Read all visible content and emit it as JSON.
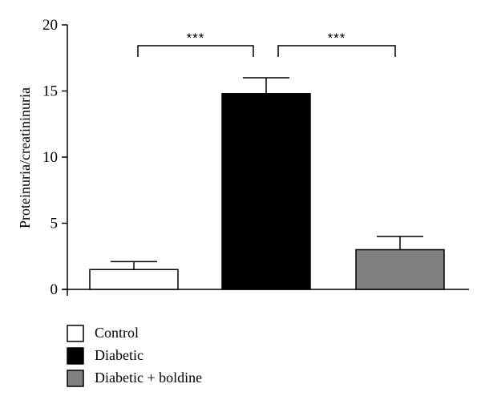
{
  "chart_data": {
    "type": "bar",
    "categories": [
      "Control",
      "Diabetic",
      "Diabetic + boldine"
    ],
    "values": [
      1.5,
      14.8,
      3.0
    ],
    "errors": [
      0.6,
      1.2,
      1.0
    ],
    "colors": [
      "#ffffff",
      "#000000",
      "#808080"
    ],
    "ylabel": "Proteinuria/creatininuria",
    "ylim": [
      0,
      20
    ],
    "yticks": [
      0,
      5,
      10,
      15,
      20
    ],
    "grid": false,
    "legend_placement": "bottom-left",
    "significance": [
      {
        "from": 0,
        "to": 1,
        "label": "***"
      },
      {
        "from": 1,
        "to": 2,
        "label": "***"
      }
    ]
  }
}
